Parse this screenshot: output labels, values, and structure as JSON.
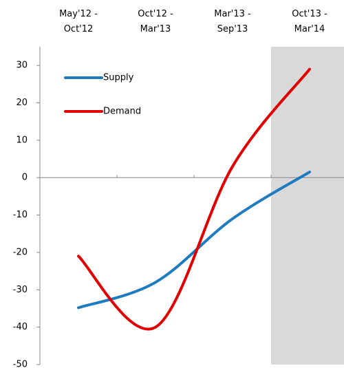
{
  "chart_data": {
    "type": "line",
    "categories": [
      "May'12 -\nOct'12",
      "Oct'12 -\nMar'13",
      "Mar'13  -\nSep'13",
      "Oct'13 -\nMar'14"
    ],
    "series": [
      {
        "name": "Supply",
        "color": "#1f7bbf",
        "values": [
          -34.8,
          -28,
          -11,
          1.5
        ]
      },
      {
        "name": "Demand",
        "color": "#e00000",
        "values": [
          -21,
          -40,
          3,
          29
        ]
      }
    ],
    "ylim": [
      -50,
      35
    ],
    "yticks": [
      -50,
      -40,
      -30,
      -20,
      -10,
      0,
      10,
      20,
      30
    ]
  }
}
